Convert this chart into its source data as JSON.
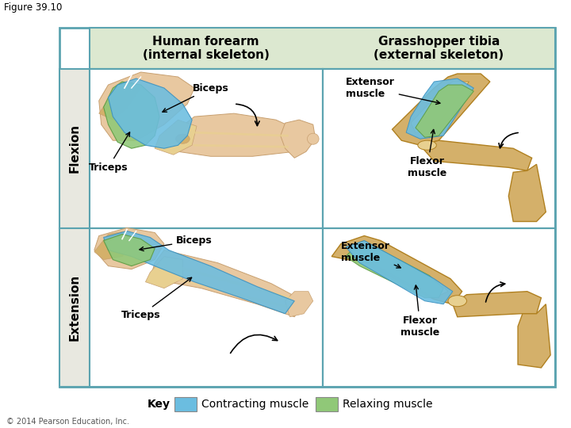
{
  "figure_label": "Figure 39.10",
  "col_headers": [
    "Human forearm\n(internal skeleton)",
    "Grasshopper tibia\n(external skeleton)"
  ],
  "row_headers": [
    "Flexion",
    "Extension"
  ],
  "header_bg": "#dce8d0",
  "row_header_bg": "#e8e8e0",
  "grid_color": "#5ba3b0",
  "key_label": "Key",
  "legend_items": [
    [
      "Contracting muscle",
      "#6bbde0"
    ],
    [
      "Relaxing muscle",
      "#90c878"
    ]
  ],
  "copyright": "© 2014 Pearson Education, Inc.",
  "blue_color": "#6bbde0",
  "green_color": "#90c878",
  "tan_color": "#d4b06a",
  "tan_light": "#e8d090",
  "skin_color": "#e8c8a0",
  "skin_dark": "#c8a070",
  "label_fontsize": 9,
  "header_fontsize": 11
}
